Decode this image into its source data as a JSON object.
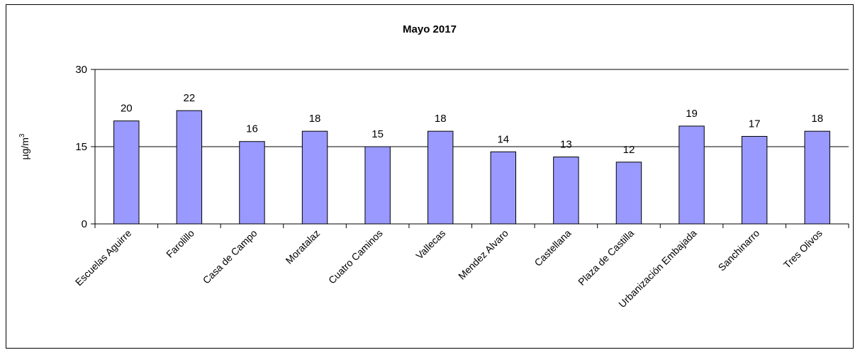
{
  "chart_data": {
    "type": "bar",
    "title": "Mayo 2017",
    "ylabel": "µg/m",
    "ylabel_superscript": "3",
    "ylim": [
      0,
      30
    ],
    "yticks": [
      "0",
      "15",
      "30"
    ],
    "grid": "horizontal",
    "categories": [
      "Escuelas Aguirre",
      "Farolillo",
      "Casa de Campo",
      "Moratalaz",
      "Cuatro Caminos",
      "Vallecas",
      "Mendez Alvaro",
      "Castellana",
      "Plaza de Castilla",
      "Urbanización Embajada",
      "Sanchinarro",
      "Tres Olivos"
    ],
    "values": [
      20,
      22,
      16,
      18,
      15,
      18,
      14,
      13,
      12,
      19,
      17,
      18
    ],
    "data_labels": [
      "20",
      "22",
      "16",
      "18",
      "15",
      "18",
      "14",
      "13",
      "12",
      "19",
      "17",
      "18"
    ],
    "colors": {
      "bar_fill": "#9999ff",
      "bar_stroke": "#000000",
      "grid": "#000000"
    }
  }
}
